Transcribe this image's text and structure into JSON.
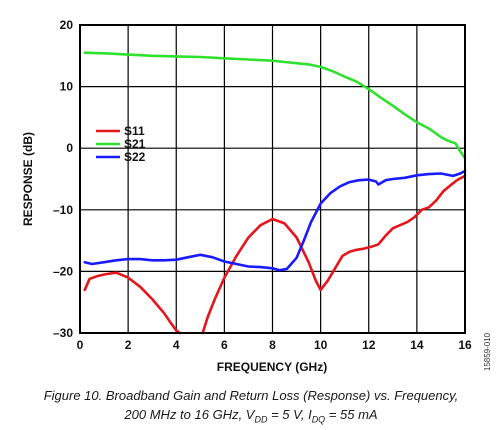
{
  "chart_data": {
    "type": "line",
    "xlabel": "FREQUENCY (GHz)",
    "ylabel": "RESPONSE (dB)",
    "xlim": [
      0,
      16
    ],
    "ylim": [
      -30,
      20
    ],
    "xticks": [
      0,
      2,
      4,
      6,
      8,
      10,
      12,
      14,
      16
    ],
    "yticks": [
      -30,
      -20,
      -10,
      0,
      10,
      20
    ],
    "xtick_labels": [
      "0",
      "2",
      "4",
      "6",
      "8",
      "10",
      "12",
      "14",
      "16"
    ],
    "ytick_labels": [
      "–30",
      "–20",
      "–10",
      "0",
      "10",
      "20"
    ],
    "grid": true,
    "legend_position": "left-middle",
    "series": [
      {
        "name": "S11",
        "color": "#e8141c",
        "x": [
          0.2,
          0.4,
          0.7,
          1.0,
          1.5,
          2.0,
          2.5,
          3.0,
          3.5,
          3.8,
          4.0,
          4.15
        ],
        "y": [
          -23,
          -21.2,
          -20.8,
          -20.5,
          -20.2,
          -21,
          -22.5,
          -24.5,
          -26.8,
          -28.5,
          -29.6,
          -30
        ],
        "x2": [
          5.1,
          5.3,
          5.6,
          6.0,
          6.5,
          7.0,
          7.5,
          8.0,
          8.5,
          9.0,
          9.5,
          9.8,
          10.0,
          10.3,
          10.6,
          10.9,
          11.2,
          11.5,
          11.8,
          12.1,
          12.4,
          12.7,
          13.0,
          13.3,
          13.6,
          13.9,
          14.2,
          14.5,
          14.8,
          15.1,
          15.4,
          15.7,
          16.0
        ],
        "y2": [
          -30,
          -27.5,
          -24.5,
          -21,
          -17.5,
          -14.5,
          -12.5,
          -11.5,
          -12.2,
          -14.5,
          -18.5,
          -21.5,
          -23,
          -21.5,
          -19.5,
          -17.5,
          -16.8,
          -16.5,
          -16.3,
          -16,
          -15.6,
          -14.2,
          -13,
          -12.5,
          -12,
          -11.2,
          -10,
          -9.6,
          -8.5,
          -7,
          -6,
          -5.1,
          -4.5
        ]
      },
      {
        "name": "S21",
        "color": "#2fe02f",
        "x": [
          0.2,
          1.0,
          2.0,
          3.0,
          4.0,
          5.0,
          6.0,
          7.0,
          8.0,
          8.5,
          9.0,
          9.5,
          10.0,
          10.5,
          11.0,
          11.5,
          12.0,
          12.5,
          13.0,
          13.5,
          14.0,
          14.5,
          15.0,
          15.3,
          15.6,
          15.8,
          16.0
        ],
        "y": [
          15.5,
          15.4,
          15.2,
          15,
          14.9,
          14.8,
          14.6,
          14.4,
          14.2,
          14,
          13.8,
          13.6,
          13.2,
          12.5,
          11.6,
          10.8,
          9.6,
          8.2,
          6.9,
          5.5,
          4.2,
          3.2,
          1.8,
          1.2,
          0.8,
          -0.5,
          -1.6
        ]
      },
      {
        "name": "S22",
        "color": "#1a1aff",
        "x": [
          0.2,
          0.5,
          1.0,
          1.5,
          2.0,
          2.5,
          3.0,
          3.5,
          4.0,
          4.5,
          5.0,
          5.5,
          6.0,
          6.5,
          7.0,
          7.5,
          8.0,
          8.3,
          8.6,
          9.0,
          9.3,
          9.6,
          10.0,
          10.4,
          10.8,
          11.2,
          11.6,
          12.0,
          12.3,
          12.4,
          12.7,
          13.0,
          13.5,
          14.0,
          14.5,
          15.0,
          15.5,
          15.8,
          16.0
        ],
        "y": [
          -18.5,
          -18.8,
          -18.5,
          -18.2,
          -18,
          -18,
          -18.2,
          -18.2,
          -18.1,
          -17.7,
          -17.3,
          -17.7,
          -18.4,
          -18.8,
          -19.2,
          -19.3,
          -19.5,
          -19.8,
          -19.6,
          -17.8,
          -15,
          -12,
          -9,
          -7.3,
          -6.2,
          -5.5,
          -5.2,
          -5.1,
          -5.4,
          -5.9,
          -5.2,
          -5,
          -4.8,
          -4.4,
          -4.2,
          -4.1,
          -4.5,
          -4.1,
          -3.7
        ]
      }
    ],
    "annotation": "15859-010"
  },
  "caption": {
    "line1": "Figure 10. Broadband Gain and Return Loss (Response) vs. Frequency,",
    "line2": "200 MHz to 16 GHz, V",
    "line2_sub1": "DD",
    "line2_mid": " = 5 V, I",
    "line2_sub2": "DQ",
    "line2_end": " = 55 mA"
  }
}
